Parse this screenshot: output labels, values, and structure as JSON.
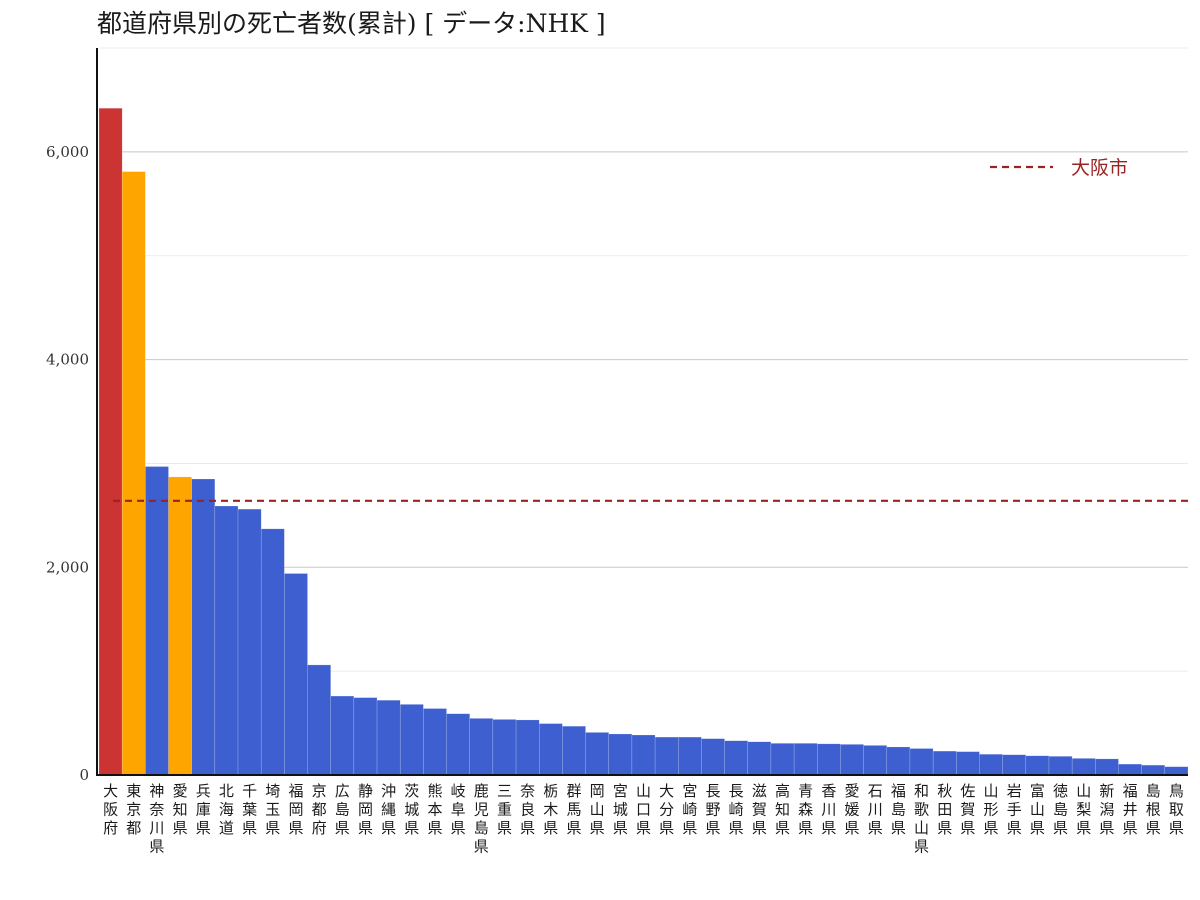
{
  "chart_data": {
    "type": "bar",
    "title": "都道府県別の死亡者数(累計) [ データ:NHK ]",
    "xlabel": "",
    "ylabel": "",
    "ylim": [
      0,
      7000
    ],
    "yticks": [
      0,
      2000,
      4000,
      6000
    ],
    "ytick_labels": [
      "0",
      "2,000",
      "4,000",
      "6,000"
    ],
    "grid": "horizontal",
    "categories": [
      "大阪府",
      "東京都",
      "神奈川県",
      "愛知県",
      "兵庫県",
      "北海道",
      "千葉県",
      "埼玉県",
      "福岡県",
      "京都府",
      "広島県",
      "静岡県",
      "沖縄県",
      "茨城県",
      "熊本県",
      "岐阜県",
      "鹿児島県",
      "三重県",
      "奈良県",
      "栃木県",
      "群馬県",
      "岡山県",
      "宮城県",
      "山口県",
      "大分県",
      "宮崎県",
      "長野県",
      "長崎県",
      "滋賀県",
      "高知県",
      "青森県",
      "香川県",
      "愛媛県",
      "石川県",
      "福島県",
      "和歌山県",
      "秋田県",
      "佐賀県",
      "山形県",
      "岩手県",
      "富山県",
      "徳島県",
      "山梨県",
      "新潟県",
      "福井県",
      "島根県",
      "鳥取県"
    ],
    "values": [
      6420,
      5810,
      2970,
      2870,
      2850,
      2590,
      2560,
      2370,
      1940,
      1060,
      760,
      745,
      720,
      680,
      640,
      590,
      545,
      535,
      530,
      495,
      470,
      410,
      395,
      385,
      365,
      365,
      350,
      330,
      320,
      305,
      305,
      300,
      295,
      285,
      270,
      255,
      230,
      225,
      200,
      195,
      185,
      180,
      160,
      155,
      105,
      95,
      80
    ],
    "bar_colors": [
      "#cc3333",
      "#ffa500",
      "#3d5fcf",
      "#ffa500",
      "#3d5fcf",
      "#3d5fcf",
      "#3d5fcf",
      "#3d5fcf",
      "#3d5fcf",
      "#3d5fcf",
      "#3d5fcf",
      "#3d5fcf",
      "#3d5fcf",
      "#3d5fcf",
      "#3d5fcf",
      "#3d5fcf",
      "#3d5fcf",
      "#3d5fcf",
      "#3d5fcf",
      "#3d5fcf",
      "#3d5fcf",
      "#3d5fcf",
      "#3d5fcf",
      "#3d5fcf",
      "#3d5fcf",
      "#3d5fcf",
      "#3d5fcf",
      "#3d5fcf",
      "#3d5fcf",
      "#3d5fcf",
      "#3d5fcf",
      "#3d5fcf",
      "#3d5fcf",
      "#3d5fcf",
      "#3d5fcf",
      "#3d5fcf",
      "#3d5fcf",
      "#3d5fcf",
      "#3d5fcf",
      "#3d5fcf",
      "#3d5fcf",
      "#3d5fcf",
      "#3d5fcf",
      "#3d5fcf",
      "#3d5fcf",
      "#3d5fcf",
      "#3d5fcf"
    ],
    "reference_line": {
      "name": "大阪市",
      "value": 2640,
      "color": "#9b2222",
      "style": "dashed"
    },
    "legend": {
      "position": "top-right",
      "entries": [
        "大阪市"
      ]
    }
  }
}
